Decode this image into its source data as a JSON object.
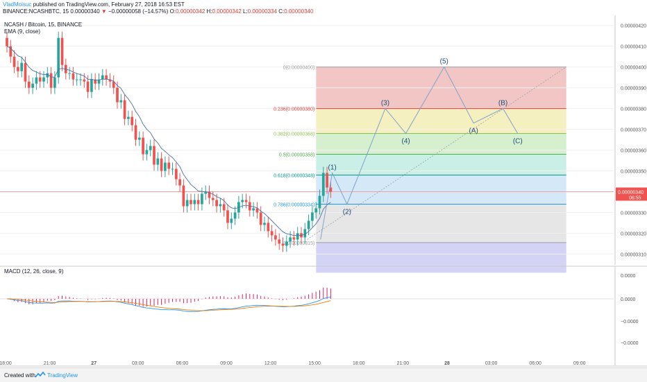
{
  "header": {
    "user": "VladMoisuc",
    "published": " published on TradingView.com, February 27, 2018 16:53 EST",
    "symbol": "BINANCE:NCASHBTC, 15",
    "price": "0.00000340",
    "change_arrow": "▼",
    "change": "−0.00000058 (−14.57%)",
    "o_label": "O:",
    "o_value": "0.00000342",
    "h_label": "H:",
    "h_value": "0.00000342",
    "l_label": "L:",
    "l_value": "0.00000334",
    "c_label": "C:",
    "c_value": "0.00000340"
  },
  "legend": {
    "title": "NCASH / Bitcoin, 15, BINANCE",
    "ema": "EMA (9, close)",
    "macd": "MACD (12, 26, close, 9)"
  },
  "footer": {
    "created": "Created with",
    "brand": "TradingView"
  },
  "colors": {
    "up": "#26a69a",
    "down": "#ef5350",
    "ema": "#4a6fa5",
    "macd": "#2196f3",
    "signal": "#f57c00",
    "hist": "#e91e63",
    "wave": "#7fa3c8",
    "label": "#1f4e79"
  },
  "chart_data": {
    "type": "candlestick",
    "price_axis": {
      "ticks": [
        "0.00000420",
        "0.00000410",
        "0.00000400",
        "0.00000390",
        "0.00000380",
        "0.00000370",
        "0.00000360",
        "0.00000350",
        "0.00000340",
        "0.00000330",
        "0.00000320",
        "0.00000310"
      ],
      "current_price": "0.00000340",
      "countdown": "06:55",
      "range": [
        3.048,
        4.249
      ]
    },
    "time_axis": {
      "labels": [
        "18:00",
        "21:00",
        "27",
        "03:00",
        "06:00",
        "09:00",
        "12:00",
        "15:00",
        "18:00",
        "21:00",
        "28",
        "03:00",
        "06:00",
        "09:00"
      ],
      "bold": [
        "27",
        "28"
      ]
    },
    "macd_axis": {
      "ticks": [
        "0.0000",
        "0.0000",
        "−0.0000",
        "−0.0000"
      ]
    },
    "candles_close": [
      4.1,
      4.05,
      4.0,
      3.98,
      4.02,
      3.93,
      3.9,
      3.92,
      3.95,
      3.93,
      3.95,
      3.97,
      3.9,
      3.95,
      4.14,
      4.01,
      3.97,
      3.97,
      3.94,
      3.94,
      3.94,
      3.93,
      3.88,
      3.94,
      3.92,
      3.94,
      3.96,
      3.94,
      3.93,
      3.9,
      3.83,
      3.84,
      3.75,
      3.76,
      3.72,
      3.65,
      3.66,
      3.58,
      3.6,
      3.62,
      3.53,
      3.56,
      3.5,
      3.54,
      3.51,
      3.51,
      3.46,
      3.43,
      3.33,
      3.36,
      3.34,
      3.36,
      3.34,
      3.39,
      3.4,
      3.37,
      3.36,
      3.33,
      3.34,
      3.31,
      3.25,
      3.27,
      3.3,
      3.35,
      3.36,
      3.35,
      3.31,
      3.32,
      3.3,
      3.24,
      3.25,
      3.21,
      3.19,
      3.17,
      3.15,
      3.14,
      3.16,
      3.18,
      3.17,
      3.2,
      3.18,
      3.22,
      3.26,
      3.3,
      3.32,
      3.38,
      3.49,
      3.42,
      3.4
    ],
    "fibonacci": [
      {
        "label": "0(0.00000400)",
        "level": 4.0,
        "color": "#9e9e9e"
      },
      {
        "label": "0.236(0.00000380)",
        "level": 3.8,
        "color": "#e53935"
      },
      {
        "label": "0.382(0.00000368)",
        "level": 3.68,
        "color": "#8bc34a"
      },
      {
        "label": "0.5(0.00000358)",
        "level": 3.58,
        "color": "#4caf50"
      },
      {
        "label": "0.618(0.00000348)",
        "level": 3.48,
        "color": "#009688"
      },
      {
        "label": "0.786(0.00000334)",
        "level": 3.34,
        "color": "#2196f3"
      },
      {
        "label": "1(0.00000315)",
        "level": 3.155,
        "color": "#9e9e9e"
      }
    ],
    "fib_zones": [
      {
        "top": 4.0,
        "bottom": 3.8,
        "color": "#f3c6c6"
      },
      {
        "top": 3.8,
        "bottom": 3.68,
        "color": "#f5f0bf"
      },
      {
        "top": 3.68,
        "bottom": 3.58,
        "color": "#d5efcf"
      },
      {
        "top": 3.58,
        "bottom": 3.48,
        "color": "#c9efe6"
      },
      {
        "top": 3.48,
        "bottom": 3.34,
        "color": "#d4e8f7"
      },
      {
        "top": 3.34,
        "bottom": 3.155,
        "color": "#e6e6e6"
      },
      {
        "top": 3.155,
        "bottom": 3.01,
        "color": "#d3d3f5"
      }
    ],
    "waves": [
      {
        "label": "(1)",
        "time": "16:15",
        "price": 3.49
      },
      {
        "label": "(2)",
        "time": "17:15",
        "price": 3.34
      },
      {
        "label": "(3)",
        "time": "19:45",
        "price": 3.8
      },
      {
        "label": "(4)",
        "time": "21:15",
        "price": 3.68
      },
      {
        "label": "(5)",
        "time": "23:45",
        "price": 4.0
      },
      {
        "label": "(A)",
        "time": "01:45",
        "price": 3.73
      },
      {
        "label": "(B)",
        "time": "03:45",
        "price": 3.8
      },
      {
        "label": "(C)",
        "time": "04:45",
        "price": 3.68
      }
    ],
    "trend_line": {
      "from": {
        "time": "14:30",
        "price": 3.17
      },
      "to": {
        "time": "08:00",
        "price": 4.0
      }
    }
  }
}
